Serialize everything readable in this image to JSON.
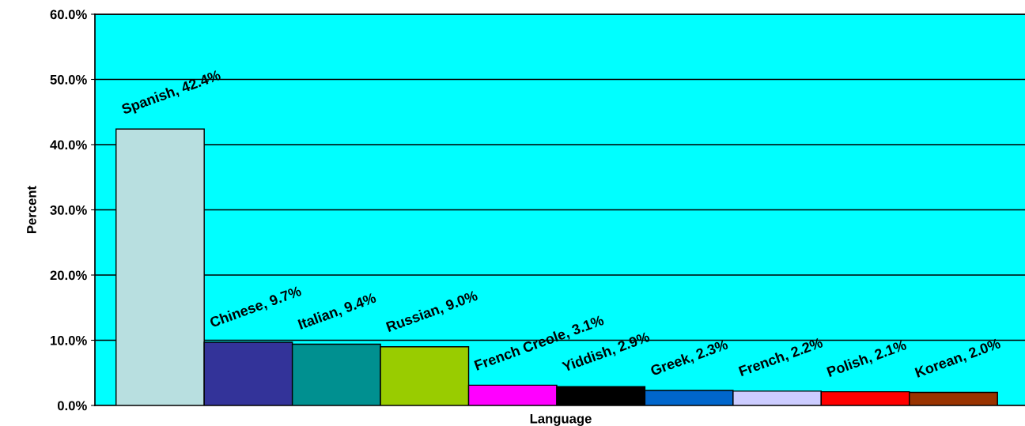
{
  "chart_data": {
    "type": "bar",
    "xlabel": "Language",
    "ylabel": "Percent",
    "categories": [
      null,
      null,
      null,
      null,
      null,
      null,
      null,
      null,
      null,
      null
    ],
    "values": [
      42.4,
      9.7,
      9.4,
      9.0,
      3.1,
      2.9,
      2.3,
      2.2,
      2.1,
      2.0
    ],
    "colors": [
      "#b8dfe0",
      "#333399",
      "#009090",
      "#99cc00",
      "#ff00ff",
      "#000000",
      "#0066cc",
      "#ccccff",
      "#ff0000",
      "#993300"
    ],
    "value_labels": [
      "Spanish, 42.4%",
      "Chinese, 9.7%",
      "Italian, 9.4%",
      "Russian, 9.0%",
      "French Creole, 3.1%",
      "Yiddish, 2.9%",
      "Greek, 2.3%",
      "French, 2.2%",
      "Polish, 2.1%",
      "Korean, 2.0%"
    ],
    "ylim": [
      0,
      60
    ],
    "yticks": [
      {
        "value": 0,
        "label": "0.0%"
      },
      {
        "value": 10,
        "label": "10.0%"
      },
      {
        "value": 20,
        "label": "20.0%"
      },
      {
        "value": 30,
        "label": "30.0%"
      },
      {
        "value": 40,
        "label": "40.0%"
      },
      {
        "value": 50,
        "label": "50.0%"
      },
      {
        "value": 60,
        "label": "60.0%"
      }
    ],
    "grid": "y",
    "legend": false
  }
}
